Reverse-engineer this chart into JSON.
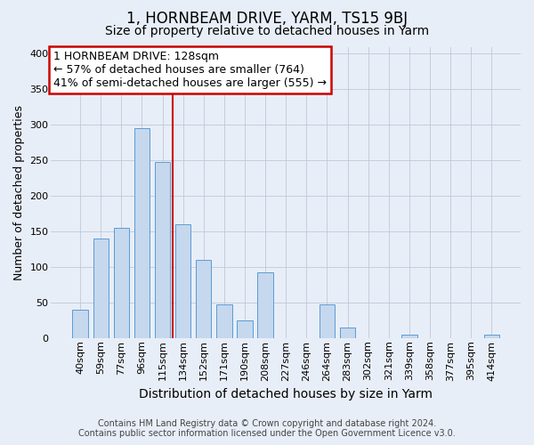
{
  "title": "1, HORNBEAM DRIVE, YARM, TS15 9BJ",
  "subtitle": "Size of property relative to detached houses in Yarm",
  "xlabel": "Distribution of detached houses by size in Yarm",
  "ylabel": "Number of detached properties",
  "footnote1": "Contains HM Land Registry data © Crown copyright and database right 2024.",
  "footnote2": "Contains public sector information licensed under the Open Government Licence v3.0.",
  "bar_labels": [
    "40sqm",
    "59sqm",
    "77sqm",
    "96sqm",
    "115sqm",
    "134sqm",
    "152sqm",
    "171sqm",
    "190sqm",
    "208sqm",
    "227sqm",
    "246sqm",
    "264sqm",
    "283sqm",
    "302sqm",
    "321sqm",
    "339sqm",
    "358sqm",
    "377sqm",
    "395sqm",
    "414sqm"
  ],
  "bar_heights": [
    40,
    140,
    155,
    295,
    248,
    160,
    110,
    47,
    25,
    93,
    0,
    0,
    47,
    15,
    0,
    0,
    5,
    0,
    0,
    0,
    5
  ],
  "bar_color": "#c5d8ed",
  "bar_edgecolor": "#5b9bd5",
  "vline_color": "#cc0000",
  "vline_index": 5,
  "annotation_title": "1 HORNBEAM DRIVE: 128sqm",
  "annotation_line1": "← 57% of detached houses are smaller (764)",
  "annotation_line2": "41% of semi-detached houses are larger (555) →",
  "annotation_box_facecolor": "#ffffff",
  "annotation_box_edgecolor": "#cc0000",
  "ylim": [
    0,
    410
  ],
  "yticks": [
    0,
    50,
    100,
    150,
    200,
    250,
    300,
    350,
    400
  ],
  "bg_color": "#e8eef8",
  "plot_bg_color": "#e8eef8",
  "title_fontsize": 12,
  "subtitle_fontsize": 10,
  "ylabel_fontsize": 9,
  "xlabel_fontsize": 10,
  "tick_fontsize": 8,
  "annotation_fontsize": 9,
  "footnote_fontsize": 7
}
